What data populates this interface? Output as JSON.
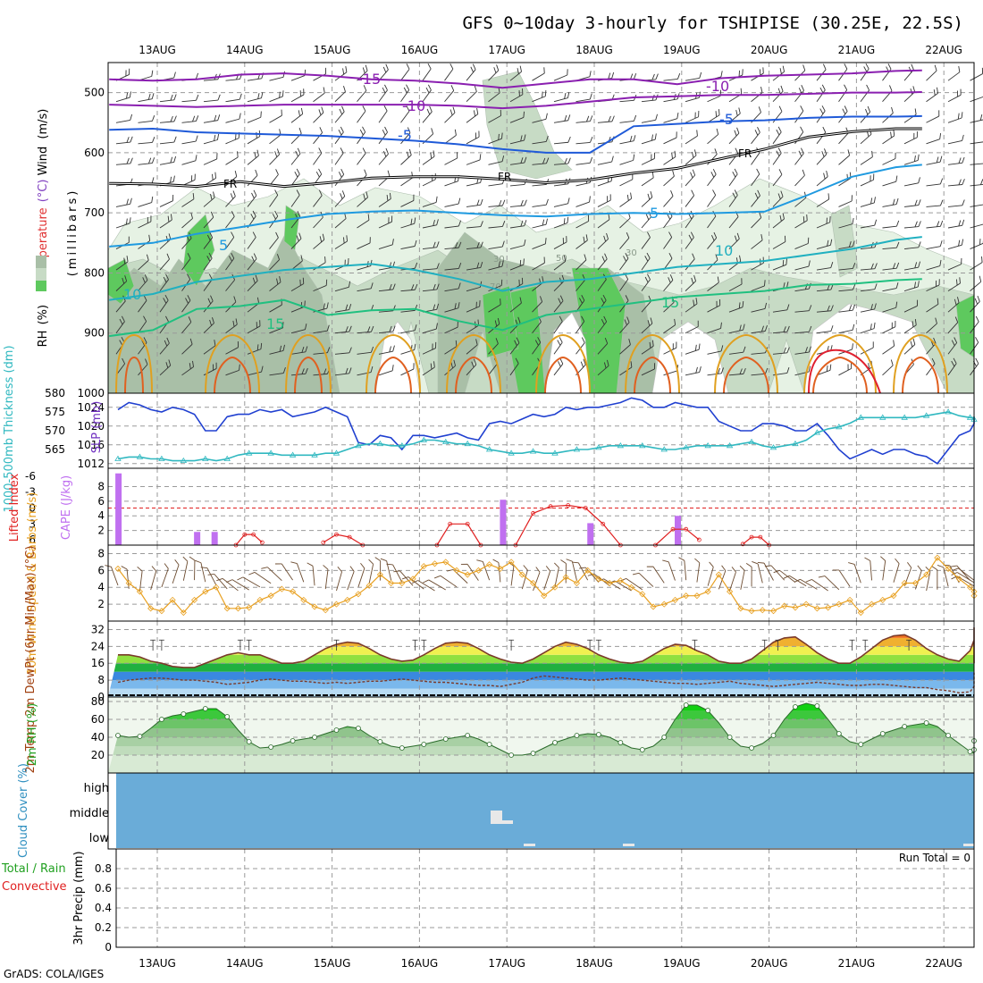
{
  "title": "GFS 0~10day 3-hourly for TSHIPISE (30.25E, 22.5S)",
  "footer": "GrADS: COLA/IGES",
  "run_total": "Run Total = 0",
  "colors": {
    "rh_light": "#e6f2e4",
    "rh_mid": "#c7dbc5",
    "rh_dark": "#a9bfa7",
    "rh_green": "#5ec95e",
    "cloud_blue": "#6aacd8",
    "cloud_gray": "#e8e8e8",
    "slp": "#2040d0",
    "thickness": "#30b8c0",
    "lifted": "#e02020",
    "cape": "#c070f0",
    "wind_speed": "#e8a020",
    "barbs": "#6b4a2e"
  },
  "chart_data": [
    {
      "type": "line",
      "panel": "upper-air cross-section",
      "ylabel_parts": [
        "Wind",
        "(m/s)",
        "Temperature",
        "(°C)",
        "RH",
        "(%)"
      ],
      "ylabel_unit": "(millibars)",
      "x": [
        "13AUG",
        "14AUG",
        "15AUG",
        "16AUG",
        "17AUG",
        "18AUG",
        "19AUG",
        "20AUG",
        "21AUG",
        "22AUG"
      ],
      "ylim": [
        1000,
        450
      ],
      "yticks": [
        500,
        600,
        700,
        800,
        900,
        1000
      ],
      "series": [
        {
          "name": "-15",
          "x": [
            0,
            0.5,
            1,
            1.5,
            2,
            2.5,
            3,
            3.5,
            4,
            4.5,
            5,
            5.5,
            6,
            6.5,
            7,
            7.5,
            8,
            8.5,
            9,
            9.3
          ],
          "values": [
            478,
            480,
            478,
            470,
            468,
            472,
            478,
            480,
            485,
            492,
            485,
            478,
            478,
            486,
            476,
            472,
            470,
            468,
            464,
            463
          ]
        },
        {
          "name": "-10",
          "x": [
            0,
            0.5,
            1,
            1.5,
            2,
            2.5,
            3,
            3.5,
            4,
            4.5,
            5,
            5.5,
            6,
            6.5,
            7,
            7.5,
            8,
            8.5,
            9,
            9.3
          ],
          "values": [
            520,
            522,
            524,
            522,
            520,
            520,
            520,
            520,
            522,
            526,
            522,
            515,
            508,
            506,
            504,
            504,
            502,
            500,
            500,
            499
          ]
        },
        {
          "name": "-5",
          "x": [
            0,
            0.5,
            1,
            1.5,
            2,
            2.5,
            3,
            3.5,
            4,
            4.5,
            5,
            5.5,
            6,
            6.5,
            7,
            7.5,
            8,
            8.5,
            9,
            9.3
          ],
          "values": [
            562,
            560,
            566,
            568,
            570,
            572,
            576,
            580,
            586,
            594,
            600,
            600,
            556,
            552,
            548,
            546,
            542,
            540,
            540,
            539
          ]
        },
        {
          "name": "FR",
          "x": [
            0,
            0.5,
            1,
            1.5,
            2,
            2.5,
            3,
            3.5,
            4,
            4.5,
            5,
            5.5,
            6,
            6.5,
            7,
            7.5,
            8,
            8.5,
            9,
            9.3
          ],
          "values": [
            651,
            652,
            656,
            648,
            656,
            650,
            642,
            640,
            640,
            644,
            650,
            645,
            634,
            626,
            610,
            594,
            574,
            565,
            560,
            560
          ]
        },
        {
          "name": "5",
          "x": [
            0,
            0.5,
            1,
            1.5,
            2,
            2.5,
            3,
            3.5,
            4,
            4.5,
            5,
            5.5,
            6,
            6.5,
            7,
            7.5,
            8,
            8.5,
            9,
            9.3
          ],
          "values": [
            756,
            750,
            735,
            724,
            712,
            702,
            698,
            696,
            700,
            704,
            706,
            702,
            700,
            702,
            700,
            698,
            670,
            640,
            624,
            620
          ]
        },
        {
          "name": "10",
          "x": [
            0,
            0.5,
            1,
            1.5,
            2,
            2.5,
            3,
            3.5,
            4,
            4.5,
            5,
            5.5,
            6,
            6.5,
            7,
            7.5,
            8,
            8.5,
            9,
            9.3
          ],
          "values": [
            845,
            835,
            815,
            805,
            795,
            790,
            785,
            795,
            810,
            830,
            815,
            810,
            800,
            790,
            785,
            780,
            770,
            760,
            745,
            740
          ]
        },
        {
          "name": "15",
          "x": [
            0,
            0.5,
            1,
            1.5,
            2,
            2.5,
            3,
            3.5,
            4,
            4.5,
            5,
            5.5,
            6,
            6.5,
            7,
            7.5,
            8,
            8.5,
            9,
            9.3
          ],
          "values": [
            905,
            895,
            860,
            855,
            845,
            870,
            862,
            860,
            880,
            895,
            870,
            860,
            850,
            840,
            835,
            830,
            820,
            818,
            812,
            810
          ]
        }
      ],
      "rh_contour_labels": [
        "30",
        "50",
        "70"
      ]
    },
    {
      "type": "line",
      "panel": "SLP and thickness",
      "ylabel_left": "1000-500mb Thickness (dm)",
      "ylabel_right": "SLP (mb)",
      "yticks_left": [
        565,
        570,
        575,
        580
      ],
      "yticks_right": [
        1012,
        1016,
        1020,
        1024
      ],
      "ylim_left": [
        560,
        580
      ],
      "ylim_right": [
        1011,
        1027
      ],
      "series": [
        {
          "name": "SLP (mb)",
          "axis": "right",
          "values": [
            1023.5,
            1025,
            1024.5,
            1023.5,
            1023,
            1024,
            1023.5,
            1022.5,
            1019,
            1019,
            1022,
            1022.5,
            1022.5,
            1023.5,
            1023,
            1023.5,
            1022,
            1022.5,
            1023,
            1024,
            1023,
            1022,
            1016.5,
            1016,
            1018,
            1017.5,
            1015,
            1018,
            1018,
            1017.5,
            1018,
            1018.5,
            1017.5,
            1017,
            1020.5,
            1021,
            1020.5,
            1021.5,
            1022.5,
            1022,
            1022.5,
            1024,
            1023.5,
            1024,
            1024,
            1024.5,
            1025,
            1026,
            1025.5,
            1024,
            1024,
            1025,
            1024.5,
            1024,
            1024,
            1021,
            1020,
            1019,
            1019,
            1020.5,
            1020.5,
            1020,
            1019,
            1019,
            1020.5,
            1018,
            1015,
            1013,
            1014,
            1015,
            1014,
            1015,
            1015,
            1014,
            1013.5,
            1012,
            1015,
            1018,
            1019,
            1020.5,
            1022
          ]
        },
        {
          "name": "1000-500mb Thickness (dm)",
          "axis": "left",
          "values": [
            562.5,
            563,
            563,
            562.5,
            562.5,
            562,
            562,
            562,
            562.5,
            562,
            562.5,
            563.5,
            564,
            564,
            564,
            563.5,
            563.5,
            563.5,
            563.5,
            564,
            564,
            565,
            566,
            566.5,
            566.5,
            566,
            566,
            566.5,
            567.5,
            567.5,
            567,
            566.5,
            566.5,
            566,
            565,
            564.5,
            564,
            564,
            564.5,
            564,
            564,
            564.5,
            565,
            565,
            565.5,
            566,
            566,
            566,
            566,
            565.5,
            565,
            565,
            565.5,
            566,
            566,
            566,
            566,
            566.5,
            567,
            566,
            565.5,
            566,
            566.5,
            567.5,
            569.5,
            570.5,
            571,
            572,
            573.5,
            573.5,
            573.5,
            573.5,
            573.5,
            573.5,
            574,
            574.5,
            575,
            574,
            573.5,
            573.5,
            573,
            572.5
          ]
        }
      ]
    },
    {
      "type": "bar",
      "panel": "CAPE and Lifted Index",
      "ylabel_left": "Lifted Index",
      "ylabel_right": "CAPE (J/kg)",
      "yticks_left": [
        "-6",
        "-3",
        "0",
        "3",
        "6"
      ],
      "yticks_right": [
        2,
        4,
        6,
        8
      ],
      "cape_bars": [
        {
          "x": 0,
          "value": 9.8
        },
        {
          "x": 0.9,
          "value": 1.8
        },
        {
          "x": 1.1,
          "value": 1.8
        },
        {
          "x": 4.4,
          "value": 6.2
        },
        {
          "x": 5.4,
          "value": 3.0
        },
        {
          "x": 6.4,
          "value": 4.0
        }
      ],
      "lifted_index_segments": [
        [
          [
            1.4,
            7
          ],
          [
            1.5,
            5
          ],
          [
            1.6,
            5
          ],
          [
            1.7,
            6.5
          ]
        ],
        [
          [
            2.4,
            6.5
          ],
          [
            2.55,
            5
          ],
          [
            2.7,
            5.5
          ],
          [
            2.85,
            7
          ]
        ],
        [
          [
            3.7,
            7
          ],
          [
            3.85,
            3
          ],
          [
            4.05,
            3
          ],
          [
            4.2,
            7
          ]
        ],
        [
          [
            4.6,
            7
          ],
          [
            4.8,
            1
          ],
          [
            5.0,
            -0.3
          ],
          [
            5.2,
            -0.5
          ],
          [
            5.4,
            0
          ],
          [
            5.6,
            3
          ],
          [
            5.8,
            7
          ]
        ],
        [
          [
            6.2,
            7
          ],
          [
            6.4,
            4
          ],
          [
            6.55,
            4
          ],
          [
            6.7,
            6
          ]
        ],
        [
          [
            7.2,
            6.8
          ],
          [
            7.3,
            5.5
          ],
          [
            7.4,
            5.5
          ],
          [
            7.5,
            7
          ]
        ]
      ]
    },
    {
      "type": "line",
      "panel": "10m wind",
      "ylabel": "10m Wind Speed & Barbs (m/s)",
      "yticks": [
        2,
        4,
        6,
        8
      ],
      "ylim": [
        0,
        9
      ],
      "series": [
        {
          "name": "10m Wind Speed",
          "values": [
            6.2,
            4.5,
            3.5,
            1.5,
            1.2,
            2.5,
            1,
            2.5,
            3.5,
            4,
            1.5,
            1.5,
            1.6,
            2.5,
            3,
            3.8,
            3.5,
            2.5,
            1.7,
            1.3,
            2,
            2.5,
            3.2,
            4.2,
            5.5,
            4.5,
            4.5,
            5,
            6.5,
            6.8,
            7,
            6,
            5.5,
            6,
            6.7,
            6.2,
            7,
            5.5,
            4.5,
            3,
            4,
            5.2,
            4.5,
            6,
            5,
            4.5,
            4.8,
            4,
            3.2,
            1.7,
            2,
            2.5,
            3,
            3,
            3.5,
            5.5,
            3.5,
            1.5,
            1.2,
            1.3,
            1.2,
            1.8,
            1.6,
            2,
            1.5,
            1.6,
            2,
            2.5,
            1,
            2,
            2.5,
            3,
            4.5,
            4.5,
            5.5,
            7.5,
            6.2,
            5,
            4,
            3.5,
            3
          ]
        }
      ]
    },
    {
      "type": "area",
      "panel": "2m temperature",
      "ylabel": "2m Temp 2m DewPt (6hr Min/Max) (°C)",
      "yticks": [
        8,
        16,
        24,
        32
      ],
      "ylim": [
        0,
        36
      ],
      "series": [
        {
          "name": "2m Temp",
          "values": [
            20,
            20,
            19,
            17,
            16,
            14.5,
            14,
            14,
            16,
            18,
            20,
            21,
            20,
            20,
            18,
            16,
            16,
            17,
            20,
            23,
            25,
            26,
            25.5,
            23,
            20,
            18,
            17,
            17.5,
            20,
            23,
            25.5,
            26,
            25.5,
            23,
            20,
            18,
            16.5,
            16,
            18,
            21,
            24,
            26,
            25,
            23,
            20,
            18,
            16.5,
            16,
            17,
            20,
            23,
            25,
            24.5,
            22,
            20,
            17,
            16,
            16,
            18,
            22,
            26,
            28,
            28.5,
            25,
            21,
            18,
            16,
            16,
            19,
            23,
            27,
            29,
            29.5,
            27,
            23,
            20,
            18,
            17,
            22,
            27,
            32,
            33,
            32,
            28,
            24,
            20,
            17,
            16,
            18
          ]
        },
        {
          "name": "2m DewPt",
          "values": [
            7,
            8,
            8.5,
            9,
            9,
            8.5,
            8,
            8,
            7.5,
            7,
            6,
            6.5,
            7,
            8,
            8.5,
            8,
            7.5,
            7.5,
            7,
            6.5,
            7,
            6.5,
            7,
            7.5,
            7.5,
            8,
            8.5,
            8,
            7.5,
            7,
            7,
            6.5,
            6,
            5.5,
            5.5,
            5,
            6,
            7,
            9,
            10,
            9.5,
            9,
            8.5,
            8,
            8,
            8.5,
            9,
            8.5,
            8,
            7.5,
            7,
            6.5,
            6.5,
            6,
            6.5,
            7,
            7.5,
            6.5,
            6,
            5.5,
            5,
            5.5,
            6,
            6.5,
            7,
            6.5,
            6,
            5.5,
            5.5,
            6,
            6,
            5.5,
            5,
            4.5,
            4.5,
            3.5,
            3,
            2,
            2.5,
            5,
            8,
            10,
            11,
            11.5
          ]
        }
      ]
    },
    {
      "type": "area",
      "panel": "2m relative humidity",
      "ylabel": "2m RH (%)",
      "yticks": [
        20,
        40,
        60,
        80
      ],
      "ylim": [
        0,
        85
      ],
      "series": [
        {
          "name": "2m RH",
          "values": [
            42,
            40,
            41,
            50,
            60,
            64,
            66,
            69,
            72,
            72,
            63,
            48,
            35,
            28,
            29,
            32,
            36,
            38,
            40,
            44,
            48,
            52,
            50,
            42,
            35,
            30,
            28,
            30,
            32,
            35,
            38,
            40,
            42,
            38,
            32,
            26,
            20,
            20,
            22,
            28,
            34,
            38,
            42,
            44,
            43,
            40,
            34,
            28,
            26,
            30,
            40,
            60,
            76,
            76,
            70,
            56,
            40,
            30,
            28,
            33,
            42,
            60,
            74,
            78,
            75,
            60,
            44,
            35,
            32,
            38,
            44,
            48,
            52,
            54,
            56,
            52,
            42,
            33,
            24,
            22,
            26,
            31,
            36
          ]
        }
      ]
    },
    {
      "type": "area",
      "panel": "cloud cover",
      "ylabel": "Cloud Cover (%)",
      "yticks": [
        "high",
        "middle",
        "low"
      ]
    },
    {
      "type": "line",
      "panel": "3hr precipitation",
      "ylabel": "3hr Precip (mm)",
      "ylabel_extra": [
        "Total / Rain",
        "Convective"
      ],
      "yticks": [
        0,
        0.2,
        0.4,
        0.6,
        0.8
      ],
      "ylim": [
        0,
        1
      ]
    }
  ]
}
